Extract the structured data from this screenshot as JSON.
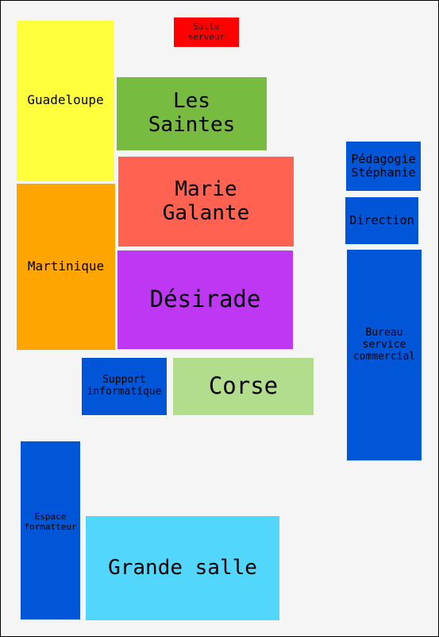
{
  "rooms": {
    "salle_serveur": {
      "label": "Salle\nserveur",
      "color": "#ff0000"
    },
    "guadeloupe": {
      "label": "Guadeloupe",
      "color": "#ffff3d"
    },
    "les_saintes": {
      "label": "Les\nSaintes",
      "color": "#77bb41"
    },
    "marie_galante": {
      "label": "Marie\nGalante",
      "color": "#ff6250"
    },
    "martinique": {
      "label": "Martinique",
      "color": "#ffa500"
    },
    "desirade": {
      "label": "Désirade",
      "color": "#be38f3"
    },
    "support_informatique": {
      "label": "Support\ninformatique",
      "color": "#0056d6"
    },
    "corse": {
      "label": "Corse",
      "color": "#b1dd8c"
    },
    "pedagogie_stephanie": {
      "label": "Pédagogie\nStéphanie",
      "color": "#0056d6"
    },
    "direction": {
      "label": "Direction",
      "color": "#0056d6"
    },
    "bureau_service_commercial": {
      "label": "Bureau\nservice\ncommercial",
      "color": "#0056d6"
    },
    "espace_formatteur": {
      "label": "Espace\nformatteur",
      "color": "#0056d6"
    },
    "grande_salle": {
      "label": "Grande salle",
      "color": "#52d6fc"
    }
  }
}
